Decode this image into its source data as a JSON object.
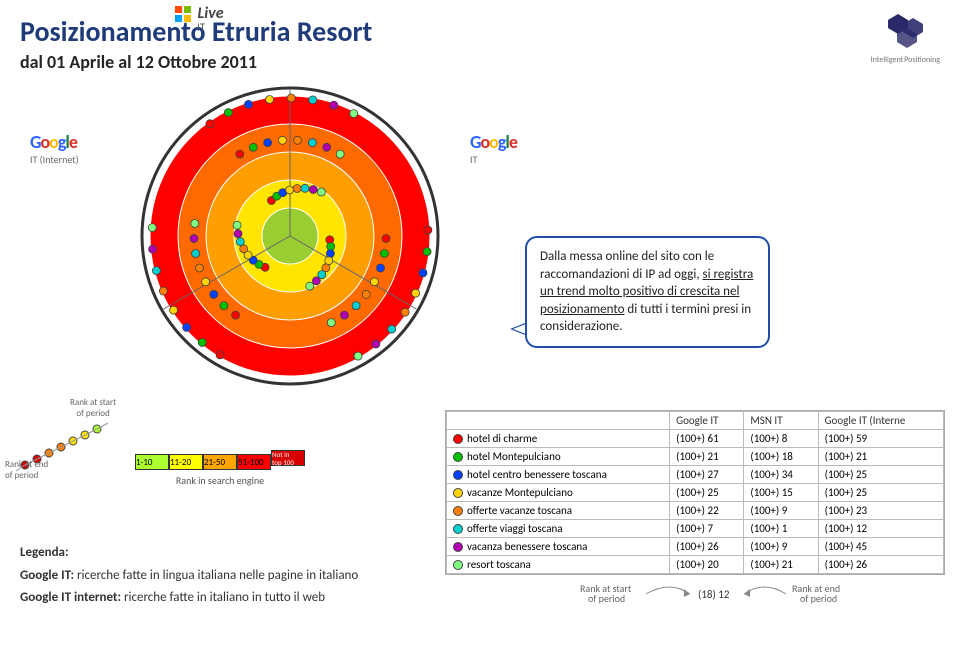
{
  "header": {
    "title": "Posizionamento Etruria Resort",
    "subtitle": "dal 01 Aprile al 12 Ottobre 2011",
    "logo_caption": "Intelligent Positioning"
  },
  "radar": {
    "rings": [
      {
        "r": 140,
        "fill": "#ff0000"
      },
      {
        "r": 112,
        "fill": "#ff6a00"
      },
      {
        "r": 84,
        "fill": "#ff9e00"
      },
      {
        "r": 56,
        "fill": "#ffe500"
      },
      {
        "r": 28,
        "fill": "#9acd32"
      }
    ],
    "dot_colors": [
      "#ff0000",
      "#00c000",
      "#0040ff",
      "#ffd400",
      "#ff7f00",
      "#00d0d0",
      "#b000b0",
      "#80ff80"
    ],
    "dot_border": "#404040"
  },
  "engine_labels": {
    "left_caption": "IT (Internet)",
    "right_caption": "IT",
    "live_caption": "IT",
    "live_text": "Live"
  },
  "callout": {
    "p1a": "Dalla messa online del sito con le raccomandazioni di IP ad oggi, ",
    "p1b": "si registra un trend molto positivo di crescita nel posizionamento",
    "p1c": " di tutti i termini presi in considerazione."
  },
  "rank_legend": {
    "start_label": "Rank at start\nof period",
    "end_label": "Rank at end\nof period",
    "caption": "Rank in search engine",
    "buckets": [
      {
        "label": "1-10",
        "fill": "#adff2f"
      },
      {
        "label": "11-20",
        "fill": "#ffff00"
      },
      {
        "label": "21-50",
        "fill": "#ffa500"
      },
      {
        "label": "51-100",
        "fill": "#ff0000"
      },
      {
        "label": "Not in\ntop 100",
        "fill": "#d60000",
        "small": true
      }
    ]
  },
  "table": {
    "headers": [
      "",
      "Google IT",
      "MSN IT",
      "Google IT (Interne"
    ],
    "rows": [
      {
        "color": "#ff0000",
        "term": "hotel di charme",
        "v": [
          [
            "(100+)",
            "61"
          ],
          [
            "(100+)",
            "8"
          ],
          [
            "(100+)",
            "59"
          ]
        ]
      },
      {
        "color": "#00c000",
        "term": "hotel Montepulciano",
        "v": [
          [
            "(100+)",
            "21"
          ],
          [
            "(100+)",
            "18"
          ],
          [
            "(100+)",
            "21"
          ]
        ]
      },
      {
        "color": "#0040ff",
        "term": "hotel centro benessere toscana",
        "v": [
          [
            "(100+)",
            "27"
          ],
          [
            "(100+)",
            "34"
          ],
          [
            "(100+)",
            "25"
          ]
        ]
      },
      {
        "color": "#ffd400",
        "term": "vacanze Montepulciano",
        "v": [
          [
            "(100+)",
            "25"
          ],
          [
            "(100+)",
            "15"
          ],
          [
            "(100+)",
            "25"
          ]
        ]
      },
      {
        "color": "#ff7f00",
        "term": "offerte vacanze toscana",
        "v": [
          [
            "(100+)",
            "22"
          ],
          [
            "(100+)",
            "9"
          ],
          [
            "(100+)",
            "23"
          ]
        ]
      },
      {
        "color": "#00d0d0",
        "term": "offerte viaggi toscana",
        "v": [
          [
            "(100+)",
            "7"
          ],
          [
            "(100+)",
            "1"
          ],
          [
            "(100+)",
            "12"
          ]
        ]
      },
      {
        "color": "#b000b0",
        "term": "vacanza benessere toscana",
        "v": [
          [
            "(100+)",
            "26"
          ],
          [
            "(100+)",
            "9"
          ],
          [
            "(100+)",
            "45"
          ]
        ]
      },
      {
        "color": "#80ff80",
        "term": "resort toscana",
        "v": [
          [
            "(100+)",
            "20"
          ],
          [
            "(100+)",
            "21"
          ],
          [
            "(100+)",
            "26"
          ]
        ]
      }
    ]
  },
  "arrow_small": {
    "left": "Rank at start\nof period",
    "mid": "(18) 12",
    "right": "Rank at end\nof period"
  },
  "legenda": {
    "title": "Legenda:",
    "line1a": "Google IT: ",
    "line1b": "ricerche fatte in lingua italiana nelle pagine in italiano",
    "line2a": "Google IT internet: ",
    "line2b": "ricerche fatte in italiano in tutto il web"
  }
}
